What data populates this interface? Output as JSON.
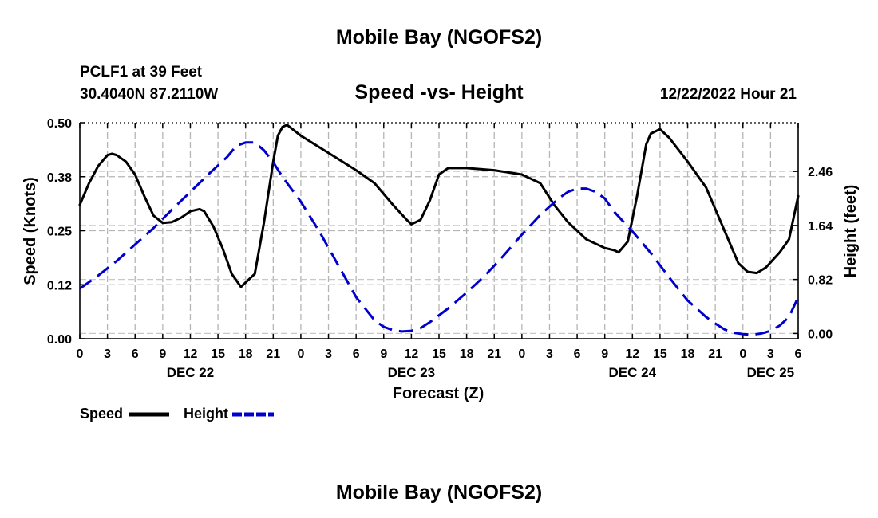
{
  "page": {
    "title_top": "Mobile Bay (NGOFS2)",
    "title_bottom": "Mobile Bay (NGOFS2)",
    "station_line": "PCLF1 at 39 Feet",
    "coords_line": "30.4040N  87.2110W",
    "date_line": "12/22/2022 Hour 21"
  },
  "chart_data": {
    "type": "line",
    "title": "Speed -vs- Height",
    "xlabel": "Forecast (Z)",
    "ylabel_left": "Speed (Knots)",
    "ylabel_right": "Height (feet)",
    "x_hours_range": [
      0,
      78
    ],
    "x_tick_labels": [
      "0",
      "3",
      "6",
      "9",
      "12",
      "15",
      "18",
      "21",
      "0",
      "3",
      "6",
      "9",
      "12",
      "15",
      "18",
      "21",
      "0",
      "3",
      "6",
      "9",
      "12",
      "15",
      "18",
      "21",
      "0",
      "3",
      "6"
    ],
    "date_labels": [
      {
        "hour": 12,
        "label": "DEC 22"
      },
      {
        "hour": 36,
        "label": "DEC 23"
      },
      {
        "hour": 60,
        "label": "DEC 24"
      },
      {
        "hour": 75,
        "label": "DEC 25"
      }
    ],
    "y_left": {
      "range": [
        0,
        0.5
      ],
      "ticks": [
        0.0,
        0.125,
        0.25,
        0.375,
        0.5
      ],
      "tick_labels": [
        "0.00",
        "0.12",
        "0.25",
        "0.38",
        "0.50"
      ]
    },
    "y_right": {
      "range": [
        -0.08,
        3.2
      ],
      "ticks": [
        0.0,
        0.82,
        1.64,
        2.46
      ],
      "tick_labels": [
        "0.00",
        "0.82",
        "1.64",
        "2.46"
      ]
    },
    "grid": true,
    "legend": [
      {
        "name": "Speed",
        "color": "#000000",
        "style": "solid"
      },
      {
        "name": "Height",
        "color": "#0000cc",
        "style": "dashed"
      }
    ],
    "series": [
      {
        "name": "Speed",
        "axis": "left",
        "color": "#000000",
        "points": [
          [
            0,
            0.31
          ],
          [
            1,
            0.36
          ],
          [
            2,
            0.4
          ],
          [
            3,
            0.425
          ],
          [
            3.5,
            0.428
          ],
          [
            4,
            0.425
          ],
          [
            5,
            0.41
          ],
          [
            6,
            0.38
          ],
          [
            7,
            0.33
          ],
          [
            8,
            0.285
          ],
          [
            9,
            0.268
          ],
          [
            10,
            0.27
          ],
          [
            11,
            0.28
          ],
          [
            12,
            0.295
          ],
          [
            13,
            0.3
          ],
          [
            13.5,
            0.295
          ],
          [
            14.5,
            0.26
          ],
          [
            15.5,
            0.21
          ],
          [
            16.5,
            0.15
          ],
          [
            17.5,
            0.12
          ],
          [
            18,
            0.13
          ],
          [
            19,
            0.15
          ],
          [
            20,
            0.27
          ],
          [
            21,
            0.41
          ],
          [
            21.5,
            0.47
          ],
          [
            22,
            0.49
          ],
          [
            22.5,
            0.495
          ],
          [
            24,
            0.47
          ],
          [
            27,
            0.43
          ],
          [
            30,
            0.39
          ],
          [
            32,
            0.36
          ],
          [
            34,
            0.31
          ],
          [
            35.5,
            0.275
          ],
          [
            36,
            0.265
          ],
          [
            37,
            0.275
          ],
          [
            38,
            0.32
          ],
          [
            39,
            0.38
          ],
          [
            40,
            0.395
          ],
          [
            41,
            0.395
          ],
          [
            42,
            0.395
          ],
          [
            45,
            0.39
          ],
          [
            48,
            0.38
          ],
          [
            50,
            0.36
          ],
          [
            51.5,
            0.31
          ],
          [
            53,
            0.27
          ],
          [
            55,
            0.23
          ],
          [
            57,
            0.21
          ],
          [
            58,
            0.205
          ],
          [
            58.5,
            0.2
          ],
          [
            59.5,
            0.225
          ],
          [
            60.5,
            0.33
          ],
          [
            61.5,
            0.45
          ],
          [
            62,
            0.475
          ],
          [
            63,
            0.485
          ],
          [
            64,
            0.465
          ],
          [
            66,
            0.41
          ],
          [
            68,
            0.35
          ],
          [
            70,
            0.25
          ],
          [
            71.5,
            0.175
          ],
          [
            72.5,
            0.155
          ],
          [
            73.5,
            0.152
          ],
          [
            74.5,
            0.165
          ],
          [
            76,
            0.2
          ],
          [
            77,
            0.23
          ],
          [
            78,
            0.33
          ]
        ]
      },
      {
        "name": "Height",
        "axis": "right",
        "color": "#0000cc",
        "points": [
          [
            0,
            0.68
          ],
          [
            2,
            0.88
          ],
          [
            4,
            1.1
          ],
          [
            6,
            1.35
          ],
          [
            8,
            1.6
          ],
          [
            10,
            1.88
          ],
          [
            12,
            2.15
          ],
          [
            14,
            2.42
          ],
          [
            16,
            2.68
          ],
          [
            17,
            2.85
          ],
          [
            18,
            2.9
          ],
          [
            19,
            2.9
          ],
          [
            20,
            2.78
          ],
          [
            21,
            2.6
          ],
          [
            22,
            2.38
          ],
          [
            24,
            2.0
          ],
          [
            26,
            1.55
          ],
          [
            28,
            1.05
          ],
          [
            30,
            0.55
          ],
          [
            32,
            0.2
          ],
          [
            33,
            0.1
          ],
          [
            34,
            0.05
          ],
          [
            35,
            0.03
          ],
          [
            36,
            0.04
          ],
          [
            37,
            0.08
          ],
          [
            38,
            0.17
          ],
          [
            40,
            0.38
          ],
          [
            42,
            0.62
          ],
          [
            44,
            0.88
          ],
          [
            46,
            1.18
          ],
          [
            48,
            1.5
          ],
          [
            50,
            1.8
          ],
          [
            52,
            2.05
          ],
          [
            53,
            2.15
          ],
          [
            54,
            2.2
          ],
          [
            55,
            2.2
          ],
          [
            56,
            2.15
          ],
          [
            57,
            2.05
          ],
          [
            58,
            1.85
          ],
          [
            60,
            1.55
          ],
          [
            62,
            1.22
          ],
          [
            64,
            0.85
          ],
          [
            66,
            0.5
          ],
          [
            68,
            0.25
          ],
          [
            69,
            0.15
          ],
          [
            70,
            0.06
          ],
          [
            71,
            0.01
          ],
          [
            72,
            -0.01
          ],
          [
            73,
            -0.02
          ],
          [
            74,
            0.0
          ],
          [
            75,
            0.04
          ],
          [
            76,
            0.12
          ],
          [
            77,
            0.25
          ],
          [
            78,
            0.55
          ]
        ]
      }
    ]
  }
}
